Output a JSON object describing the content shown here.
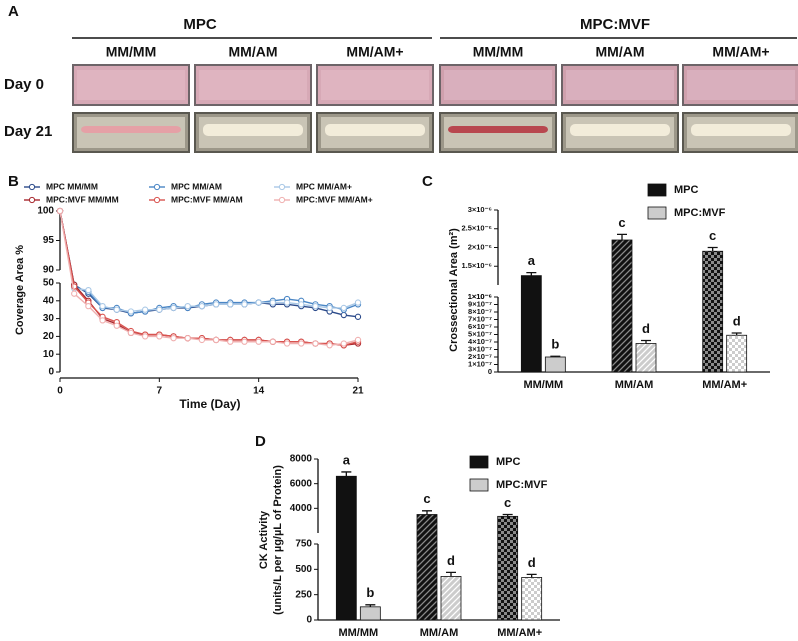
{
  "panel_a": {
    "label": "A",
    "groups": [
      {
        "name": "MPC",
        "columns": [
          "MM/MM",
          "MM/AM",
          "MM/AM+"
        ]
      },
      {
        "name": "MPC:MVF",
        "columns": [
          "MM/MM",
          "MM/AM",
          "MM/AM+"
        ]
      }
    ],
    "rows": [
      "Day 0",
      "Day 21"
    ]
  },
  "chart_data": [
    {
      "panel_label": "B",
      "type": "line",
      "xlabel": "Time (Day)",
      "ylabel": "Coverage Area %",
      "x": [
        0,
        1,
        2,
        3,
        4,
        5,
        6,
        7,
        8,
        9,
        10,
        11,
        12,
        13,
        14,
        15,
        16,
        17,
        18,
        19,
        20,
        21
      ],
      "xlim": [
        0,
        21
      ],
      "xticks": [
        0,
        7,
        14,
        21
      ],
      "ylim": [
        0,
        50
      ],
      "yticks": [
        0,
        10,
        20,
        30,
        40,
        50
      ],
      "ylim_top": [
        90,
        100
      ],
      "yticks_top": [
        90,
        95,
        100
      ],
      "legend": "top",
      "series": [
        {
          "name": "MPC MM/MM",
          "color": "#2b4a8a",
          "values": [
            100,
            49,
            44,
            36,
            35,
            33,
            34,
            35,
            36,
            36,
            37,
            38,
            38,
            38,
            39,
            38,
            38,
            37,
            36,
            34,
            32,
            31
          ]
        },
        {
          "name": "MPC MM/AM",
          "color": "#4a86c5",
          "values": [
            100,
            48,
            45,
            36,
            36,
            33,
            34,
            36,
            37,
            36,
            38,
            39,
            39,
            39,
            39,
            40,
            41,
            40,
            38,
            37,
            35,
            38
          ]
        },
        {
          "name": "MPC MM/AM+",
          "color": "#a9c8e6",
          "values": [
            100,
            47,
            46,
            37,
            35,
            34,
            35,
            35,
            36,
            37,
            37,
            38,
            38,
            38,
            39,
            39,
            39,
            38,
            37,
            36,
            36,
            39
          ]
        },
        {
          "name": "MPC:MVF MM/MM",
          "color": "#a8282e",
          "values": [
            100,
            49,
            40,
            30,
            27,
            22,
            21,
            21,
            20,
            19,
            19,
            18,
            18,
            18,
            18,
            17,
            17,
            17,
            16,
            16,
            15,
            16
          ]
        },
        {
          "name": "MPC:MVF MM/AM",
          "color": "#d9534f",
          "values": [
            100,
            48,
            39,
            31,
            28,
            23,
            21,
            21,
            20,
            19,
            19,
            18,
            18,
            18,
            18,
            17,
            17,
            17,
            16,
            16,
            15,
            17
          ]
        },
        {
          "name": "MPC:MVF MM/AM+",
          "color": "#f0b0b0",
          "values": [
            100,
            44,
            37,
            29,
            26,
            22,
            20,
            20,
            19,
            19,
            18,
            18,
            17,
            17,
            17,
            17,
            16,
            16,
            16,
            15,
            16,
            18
          ]
        }
      ]
    },
    {
      "panel_label": "C",
      "type": "bar",
      "ylabel": "Crossectional Area (m²)",
      "categories": [
        "MM/MM",
        "MM/AM",
        "MM/AM+"
      ],
      "patterns": [
        "solid",
        "hatch",
        "check"
      ],
      "ylim": [
        0,
        1e-06
      ],
      "yticks": [
        0,
        {
          "value": 1e-07,
          "label": "1×10⁻⁷"
        },
        {
          "value": 2e-07,
          "label": "2×10⁻⁷"
        },
        {
          "value": 3e-07,
          "label": "3×10⁻⁷"
        },
        {
          "value": 4e-07,
          "label": "4×10⁻⁷"
        },
        {
          "value": 5e-07,
          "label": "5×10⁻⁷"
        },
        {
          "value": 6e-07,
          "label": "6×10⁻⁷"
        },
        {
          "value": 7e-07,
          "label": "7×10⁻⁷"
        },
        {
          "value": 8e-07,
          "label": "8×10⁻⁷"
        },
        {
          "value": 9e-07,
          "label": "9×10⁻⁷"
        },
        {
          "value": 1e-06,
          "label": "1×10⁻⁶"
        }
      ],
      "ylim_top": [
        1e-06,
        3e-06
      ],
      "yticks_top": [
        {
          "value": 1e-06,
          "label": "1×10⁻⁶"
        },
        {
          "value": 1.5e-06,
          "label": "1.5×10⁻⁶"
        },
        {
          "value": 2e-06,
          "label": "2×10⁻⁶"
        },
        {
          "value": 2.5e-06,
          "label": "2.5×10⁻⁶"
        },
        {
          "value": 3e-06,
          "label": "3×10⁻⁶"
        }
      ],
      "legend": "upper right",
      "series": [
        {
          "name": "MPC",
          "color": "#111111",
          "values": [
            1.25e-06,
            2.2e-06,
            1.9e-06
          ],
          "errors": [
            8e-08,
            1.5e-07,
            1e-07
          ],
          "letters": [
            "a",
            "c",
            "c"
          ]
        },
        {
          "name": "MPC:MVF",
          "color": "#cccccc",
          "values": [
            2e-07,
            3.8e-07,
            4.9e-07
          ],
          "errors": [
            1e-08,
            4e-08,
            3e-08
          ],
          "letters": [
            "b",
            "d",
            "d"
          ]
        }
      ]
    },
    {
      "panel_label": "D",
      "type": "bar",
      "ylabel": [
        "CK Activity",
        "(units/L per µg/µL of Protein)"
      ],
      "categories": [
        "MM/MM",
        "MM/AM",
        "MM/AM+"
      ],
      "patterns": [
        "solid",
        "hatch",
        "check"
      ],
      "ylim": [
        0,
        750
      ],
      "yticks": [
        0,
        250,
        500,
        750
      ],
      "ylim_top": [
        2000,
        8000
      ],
      "yticks_top": [
        4000,
        6000,
        8000
      ],
      "legend": "upper right",
      "series": [
        {
          "name": "MPC",
          "color": "#111111",
          "values": [
            6600,
            3500,
            3350
          ],
          "errors": [
            350,
            300,
            150
          ],
          "letters": [
            "a",
            "c",
            "c"
          ]
        },
        {
          "name": "MPC:MVF",
          "color": "#cccccc",
          "values": [
            130,
            430,
            420
          ],
          "errors": [
            20,
            40,
            30
          ],
          "letters": [
            "b",
            "d",
            "d"
          ]
        }
      ]
    }
  ]
}
